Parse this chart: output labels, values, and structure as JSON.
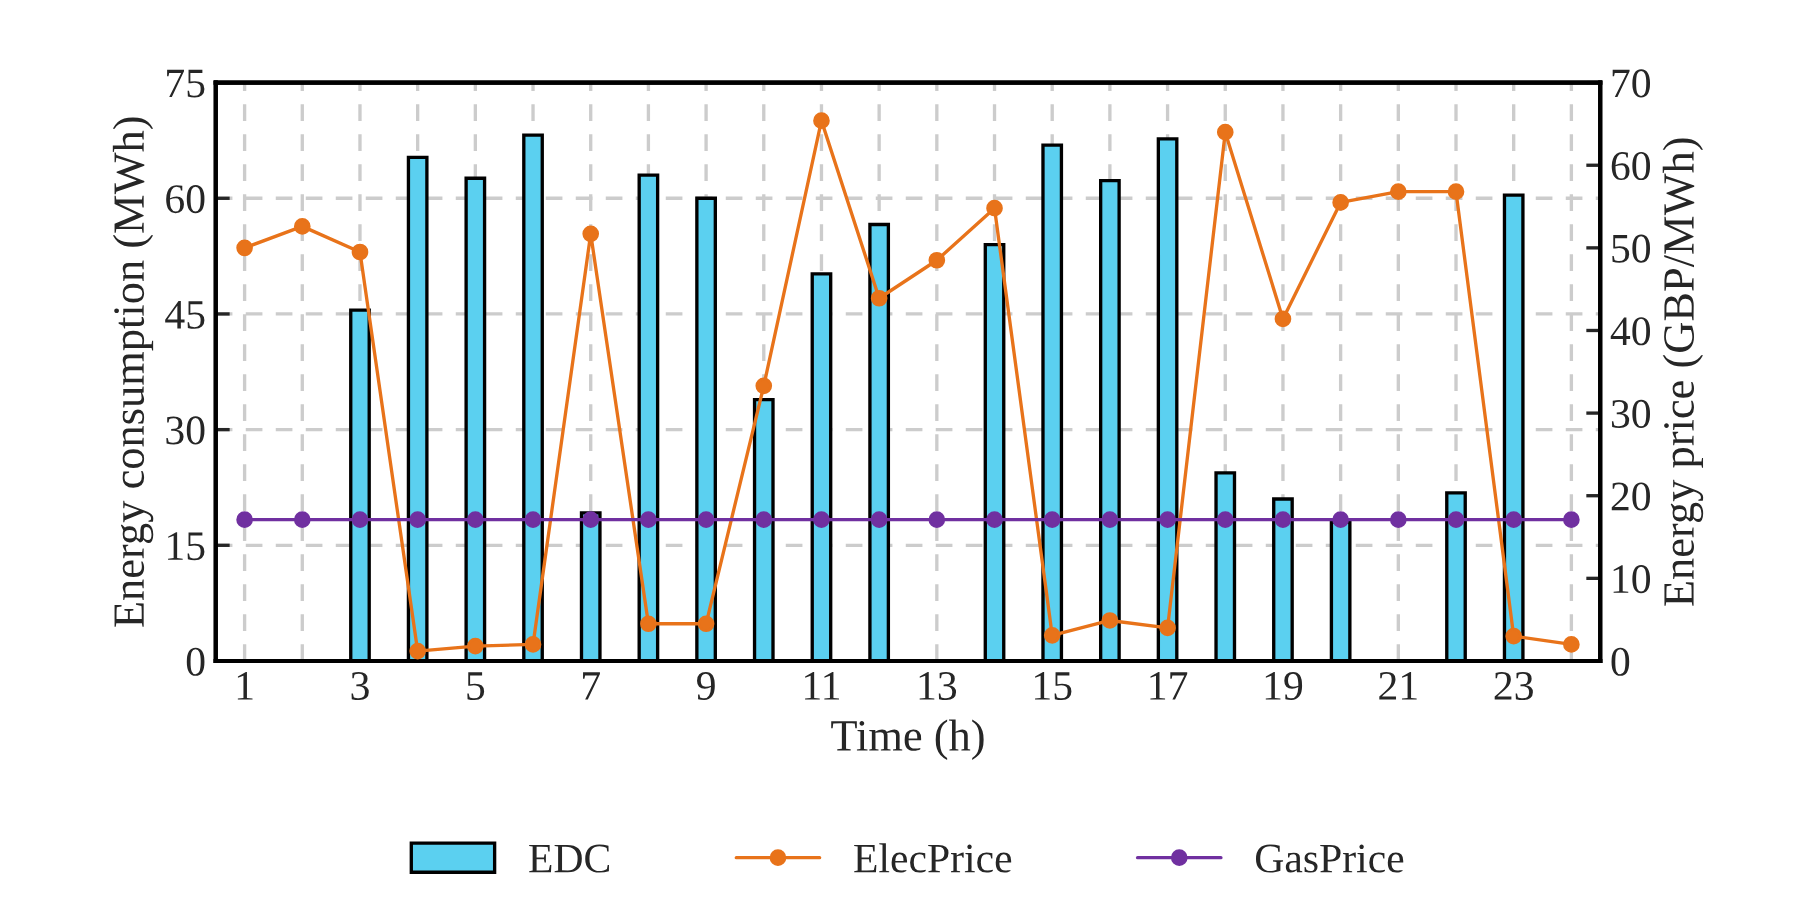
{
  "chart_data": {
    "type": "bar",
    "xlabel": "Time (h)",
    "ylabel": "Energy consumption (MWh)",
    "y2label": "Energy price (GBP/MWh)",
    "categories": [
      "1",
      null,
      "3",
      null,
      "5",
      null,
      "7",
      null,
      "9",
      null,
      "11",
      null,
      "13",
      null,
      "15",
      null,
      "17",
      null,
      "19",
      null,
      "21",
      null,
      "23",
      null
    ],
    "series": [
      {
        "name": "EDC",
        "color": "#5bd0f0",
        "values": [
          null,
          null,
          45.5,
          65.3,
          62.6,
          68.2,
          19.2,
          63.0,
          60.0,
          33.9,
          50.2,
          56.6,
          null,
          54.0,
          66.9,
          62.3,
          67.7,
          24.4,
          21.0,
          18.0,
          null,
          21.8,
          60.4,
          null
        ]
      },
      {
        "name": "ElecPrice",
        "type": "line",
        "axis": "y2",
        "color": "#e8731a",
        "marker": "circle",
        "values": [
          50.0,
          52.6,
          49.5,
          1.2,
          1.8,
          2.0,
          51.7,
          4.5,
          4.5,
          33.3,
          65.4,
          43.9,
          48.5,
          54.8,
          3.1,
          4.9,
          4.0,
          64.0,
          41.4,
          55.5,
          56.8,
          56.8,
          3.0,
          2.0
        ]
      },
      {
        "name": "GasPrice",
        "type": "line",
        "axis": "y2",
        "color": "#7030a0",
        "marker": "circle",
        "values": [
          17.1,
          17.1,
          17.1,
          17.1,
          17.1,
          17.1,
          17.1,
          17.1,
          17.1,
          17.1,
          17.1,
          17.1,
          17.1,
          17.1,
          17.1,
          17.1,
          17.1,
          17.1,
          17.1,
          17.1,
          17.1,
          17.1,
          17.1,
          17.1
        ]
      }
    ],
    "ylim": [
      0,
      75
    ],
    "yticks": [
      0,
      15,
      30,
      45,
      60,
      75
    ],
    "y2lim": [
      0,
      70
    ],
    "y2ticks": [
      0,
      10,
      20,
      30,
      40,
      50,
      60,
      70
    ],
    "grid": true,
    "legend": "bottom"
  }
}
